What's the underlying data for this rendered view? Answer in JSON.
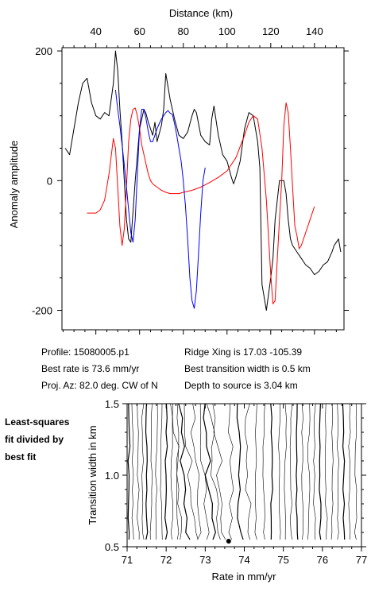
{
  "top_chart": {
    "xlabel": "Distance (km)",
    "ylabel": "Anomaly amplitude",
    "x_ticks": [
      40,
      60,
      80,
      100,
      120,
      140
    ],
    "y_ticks": [
      200,
      0,
      -200
    ],
    "y_tick_labels": [
      "200",
      "0",
      "-200"
    ]
  },
  "info": {
    "profile": "Profile: 15080005.p1",
    "best_rate": "Best rate is 73.6 mm/yr",
    "proj_az": "Proj. Az: 82.0 deg. CW of N",
    "ridge_xing": "Ridge Xing is 17.03 -105.39",
    "best_width": "Best transition width is 0.5 km",
    "depth": "Depth to source is   3.04 km"
  },
  "bottom_chart": {
    "xlabel": "Rate in mm/yr",
    "ylabel": "Transition width in km",
    "x_ticks": [
      71,
      72,
      73,
      74,
      75,
      76,
      77
    ],
    "y_ticks": [
      1.5,
      1.0,
      0.5
    ],
    "y_tick_labels": [
      "1.5",
      "1.0",
      "0.5"
    ],
    "side_label": [
      "Least-squares",
      "fit divided by",
      "best fit"
    ]
  },
  "chart_data": [
    {
      "type": "line",
      "xlabel": "Distance (km)",
      "ylabel": "Anomaly amplitude",
      "xlim": [
        24.5,
        153.5
      ],
      "ylim": [
        -230,
        205
      ],
      "grid": false,
      "colors": {
        "observed": "#000000",
        "model": "#ff0000",
        "window": "#0000ff"
      },
      "series": [
        {
          "x": [
            26,
            28,
            30,
            32,
            34,
            36,
            38,
            40,
            42,
            44,
            46,
            48,
            49,
            50,
            51,
            52,
            54,
            55,
            56,
            58,
            60,
            62,
            63,
            64,
            66,
            67,
            68,
            70,
            71,
            72,
            74,
            76,
            78,
            80,
            82,
            84,
            85,
            86,
            88,
            90,
            92,
            93,
            94,
            96,
            98,
            100,
            102,
            103,
            104,
            106,
            108,
            110,
            112,
            114,
            115,
            116,
            118,
            120,
            121,
            122,
            124,
            125,
            126,
            127,
            128,
            129,
            130,
            131,
            132,
            134,
            136,
            138,
            140,
            142,
            144,
            146,
            148,
            149,
            150,
            151,
            152
          ],
          "y": [
            50,
            40,
            80,
            120,
            150,
            158,
            120,
            100,
            95,
            105,
            100,
            150,
            200,
            170,
            110,
            60,
            -60,
            -90,
            -95,
            0,
            80,
            110,
            103,
            90,
            70,
            90,
            60,
            85,
            110,
            165,
            125,
            95,
            70,
            65,
            75,
            100,
            110,
            105,
            70,
            60,
            55,
            95,
            115,
            70,
            40,
            30,
            5,
            -5,
            5,
            30,
            80,
            105,
            100,
            60,
            20,
            -160,
            -200,
            -150,
            -120,
            -60,
            0,
            0,
            0,
            -20,
            -60,
            -90,
            -100,
            -105,
            -110,
            -120,
            -130,
            -135,
            -145,
            -140,
            -130,
            -125,
            -110,
            -100,
            -95,
            -90,
            -110
          ]
        },
        {
          "x": [
            36,
            40,
            42,
            44,
            46,
            48,
            49,
            50,
            51,
            52,
            53,
            54,
            55,
            56,
            57,
            58,
            59,
            60,
            61,
            62,
            63,
            64,
            65,
            66,
            68,
            70,
            72,
            74,
            76,
            78,
            80,
            84,
            88,
            92,
            96,
            100,
            104,
            108,
            110,
            112,
            114,
            116,
            118,
            120,
            121,
            122,
            123,
            124,
            125,
            126,
            127,
            128,
            129,
            130,
            131,
            132,
            133,
            134,
            136,
            138,
            140
          ],
          "y": [
            -50,
            -50,
            -45,
            -30,
            10,
            65,
            50,
            -10,
            -70,
            -100,
            -75,
            -10,
            60,
            95,
            110,
            112,
            100,
            80,
            55,
            40,
            25,
            10,
            0,
            -5,
            -10,
            -15,
            -18,
            -20,
            -20,
            -20,
            -18,
            -15,
            -10,
            -3,
            5,
            15,
            35,
            70,
            90,
            100,
            95,
            50,
            -30,
            -145,
            -190,
            -185,
            -120,
            -60,
            0,
            85,
            120,
            105,
            50,
            -10,
            -70,
            -85,
            -105,
            -100,
            -80,
            -60,
            -40
          ]
        },
        {
          "x": [
            49,
            50,
            51,
            52,
            53,
            54,
            55,
            56,
            57,
            58,
            59,
            60,
            61,
            62,
            63,
            64,
            65,
            66,
            67,
            68,
            69,
            70,
            71,
            72,
            73,
            74,
            75,
            76,
            77,
            78,
            79,
            80,
            81,
            82,
            83,
            84,
            85,
            86,
            87,
            88,
            89,
            90
          ],
          "y": [
            140,
            110,
            85,
            55,
            25,
            -10,
            -45,
            -80,
            -95,
            -60,
            10,
            80,
            110,
            110,
            95,
            75,
            60,
            60,
            70,
            80,
            88,
            95,
            100,
            105,
            108,
            104,
            102,
            88,
            70,
            50,
            30,
            0,
            -40,
            -90,
            -150,
            -185,
            -197,
            -170,
            -110,
            -50,
            0,
            20
          ]
        }
      ]
    },
    {
      "type": "heatmap",
      "xlabel": "Rate in mm/yr",
      "ylabel": "Transition width in km",
      "xlim": [
        71,
        77
      ],
      "ylim": [
        0.5,
        1.5
      ],
      "grid": false,
      "best_fit_marker": {
        "x": 73.6,
        "y": 0.5
      }
    }
  ]
}
